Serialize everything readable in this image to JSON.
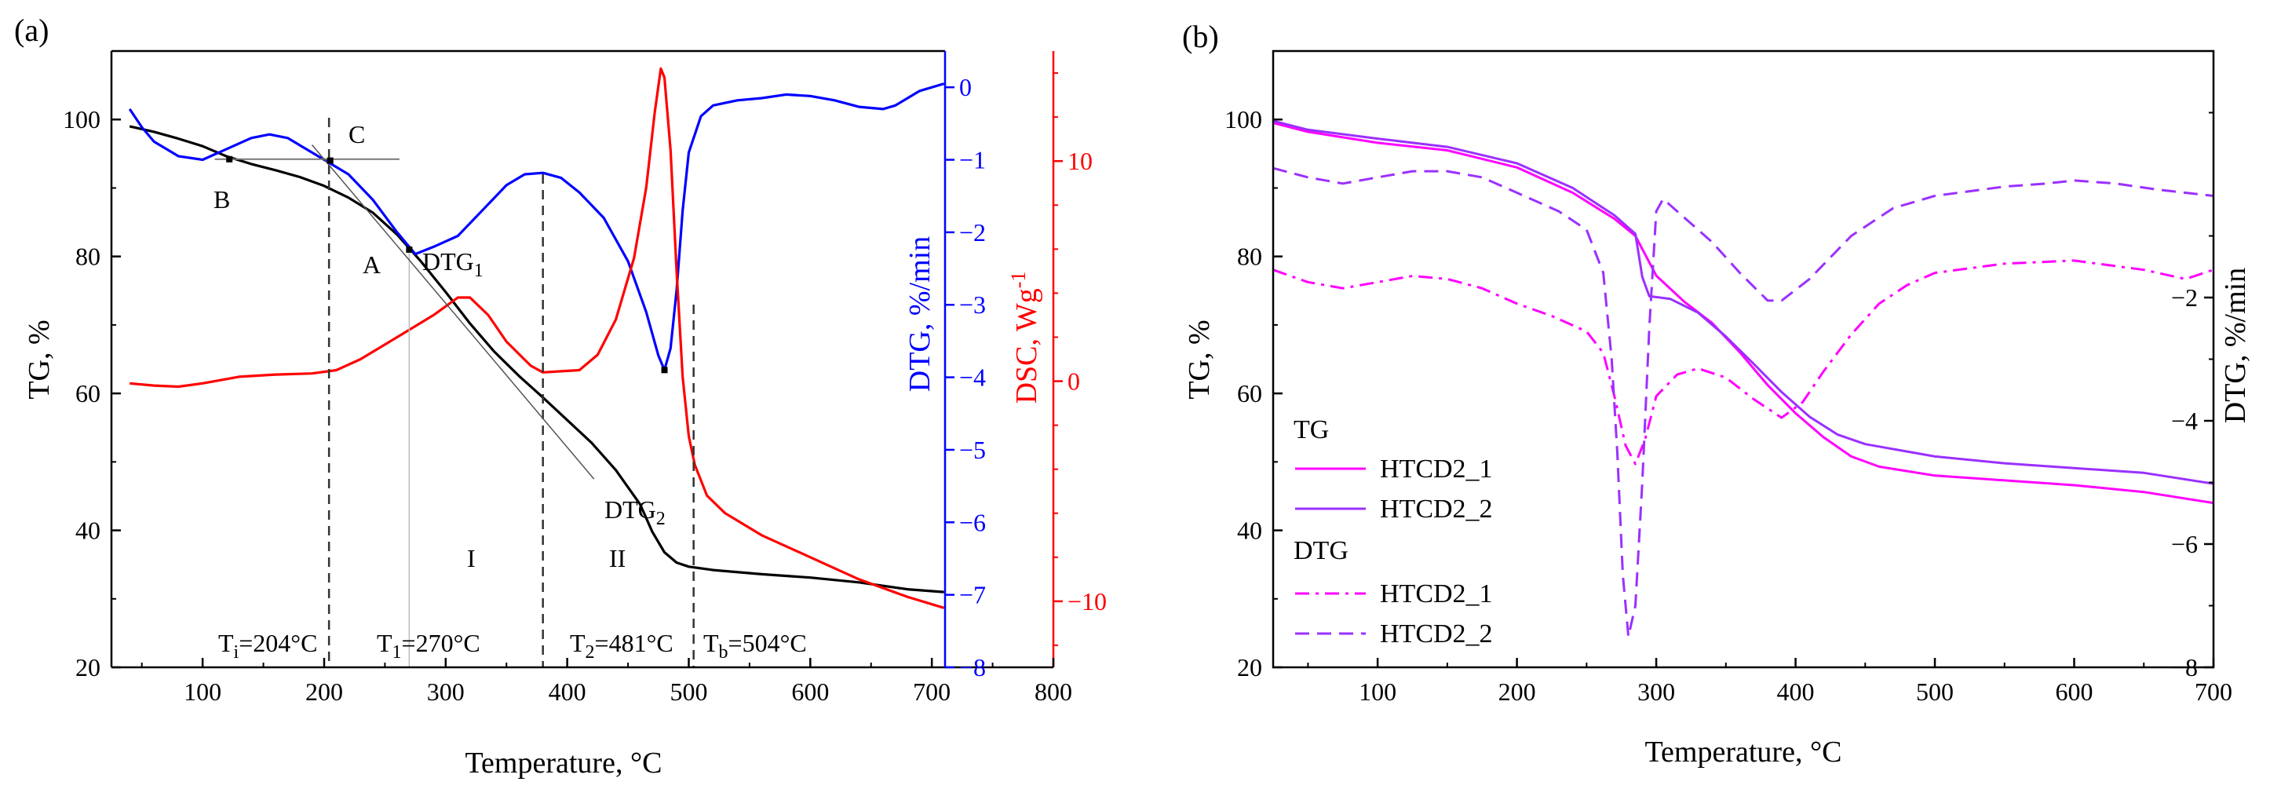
{
  "chart_data": [
    {
      "panel": "(a)",
      "type": "line",
      "xlabel": "Temperature, °C",
      "xlim": [
        25,
        800
      ],
      "x_ticks": [
        100,
        200,
        300,
        400,
        500,
        600,
        700,
        800
      ],
      "axes": {
        "tg": {
          "label": "TG, %",
          "ylim": [
            20,
            110
          ],
          "ticks": [
            20,
            40,
            60,
            80,
            100
          ],
          "color": "#000000"
        },
        "dtg": {
          "label": "DTG, %/min",
          "ylim": [
            -8,
            0.5
          ],
          "ticks": [
            -8,
            -7,
            -6,
            -5,
            -4,
            -3,
            -2,
            -1,
            0
          ],
          "color": "#0000ff"
        },
        "dsc": {
          "label": "DSC, Wg",
          "label_superscript": "-1",
          "ylim": [
            -13,
            15
          ],
          "ticks": [
            -10,
            0,
            10
          ],
          "tick_labels": [
            "−10",
            "0",
            "10"
          ],
          "color": "#ff0000"
        }
      },
      "series": [
        {
          "axis": "tg",
          "color": "#000000",
          "points": [
            [
              40,
              99
            ],
            [
              60,
              98.2
            ],
            [
              80,
              97.2
            ],
            [
              100,
              96.1
            ],
            [
              120,
              94.6
            ],
            [
              140,
              93.5
            ],
            [
              160,
              92.6
            ],
            [
              180,
              91.6
            ],
            [
              200,
              90.3
            ],
            [
              220,
              88.6
            ],
            [
              240,
              86.4
            ],
            [
              260,
              83.2
            ],
            [
              270,
              81.2
            ],
            [
              280,
              79.2
            ],
            [
              300,
              74.8
            ],
            [
              320,
              70.2
            ],
            [
              340,
              66.1
            ],
            [
              360,
              62.6
            ],
            [
              380,
              59.4
            ],
            [
              400,
              56.1
            ],
            [
              420,
              52.8
            ],
            [
              440,
              48.8
            ],
            [
              460,
              43.8
            ],
            [
              470,
              39.8
            ],
            [
              480,
              36.8
            ],
            [
              490,
              35.3
            ],
            [
              500,
              34.7
            ],
            [
              520,
              34.2
            ],
            [
              560,
              33.6
            ],
            [
              600,
              33.1
            ],
            [
              640,
              32.4
            ],
            [
              680,
              31.4
            ],
            [
              710,
              31
            ]
          ]
        },
        {
          "axis": "dtg",
          "color": "#0000ff",
          "points": [
            [
              40,
              -0.3
            ],
            [
              50,
              -0.55
            ],
            [
              60,
              -0.75
            ],
            [
              80,
              -0.95
            ],
            [
              100,
              -1.0
            ],
            [
              120,
              -0.85
            ],
            [
              140,
              -0.7
            ],
            [
              155,
              -0.65
            ],
            [
              170,
              -0.7
            ],
            [
              190,
              -0.9
            ],
            [
              205,
              -1.05
            ],
            [
              220,
              -1.2
            ],
            [
              240,
              -1.55
            ],
            [
              260,
              -2.0
            ],
            [
              275,
              -2.3
            ],
            [
              290,
              -2.2
            ],
            [
              310,
              -2.05
            ],
            [
              330,
              -1.7
            ],
            [
              350,
              -1.35
            ],
            [
              365,
              -1.2
            ],
            [
              380,
              -1.18
            ],
            [
              395,
              -1.25
            ],
            [
              410,
              -1.45
            ],
            [
              430,
              -1.8
            ],
            [
              450,
              -2.4
            ],
            [
              465,
              -3.1
            ],
            [
              475,
              -3.7
            ],
            [
              480,
              -3.9
            ],
            [
              485,
              -3.6
            ],
            [
              490,
              -2.8
            ],
            [
              495,
              -1.7
            ],
            [
              500,
              -0.9
            ],
            [
              510,
              -0.4
            ],
            [
              520,
              -0.25
            ],
            [
              540,
              -0.18
            ],
            [
              560,
              -0.15
            ],
            [
              580,
              -0.1
            ],
            [
              600,
              -0.12
            ],
            [
              620,
              -0.18
            ],
            [
              640,
              -0.27
            ],
            [
              660,
              -0.3
            ],
            [
              670,
              -0.25
            ],
            [
              690,
              -0.05
            ],
            [
              710,
              0.05
            ]
          ]
        },
        {
          "axis": "dsc",
          "color": "#ff0000",
          "points": [
            [
              40,
              -0.1
            ],
            [
              60,
              -0.2
            ],
            [
              80,
              -0.25
            ],
            [
              100,
              -0.1
            ],
            [
              130,
              0.2
            ],
            [
              160,
              0.3
            ],
            [
              190,
              0.35
            ],
            [
              210,
              0.5
            ],
            [
              230,
              1.0
            ],
            [
              260,
              2.0
            ],
            [
              290,
              3.0
            ],
            [
              310,
              3.8
            ],
            [
              320,
              3.8
            ],
            [
              335,
              3.0
            ],
            [
              350,
              1.8
            ],
            [
              370,
              0.7
            ],
            [
              380,
              0.4
            ],
            [
              395,
              0.45
            ],
            [
              410,
              0.5
            ],
            [
              425,
              1.2
            ],
            [
              440,
              2.8
            ],
            [
              455,
              5.6
            ],
            [
              465,
              8.8
            ],
            [
              472,
              12.2
            ],
            [
              477,
              14.2
            ],
            [
              480,
              13.8
            ],
            [
              485,
              10.5
            ],
            [
              490,
              5.0
            ],
            [
              495,
              0.2
            ],
            [
              500,
              -2.5
            ],
            [
              505,
              -3.8
            ],
            [
              515,
              -5.2
            ],
            [
              530,
              -6.0
            ],
            [
              560,
              -7.0
            ],
            [
              600,
              -8.0
            ],
            [
              640,
              -9.0
            ],
            [
              680,
              -9.8
            ],
            [
              710,
              -10.3
            ]
          ]
        }
      ],
      "annotations": [
        "B",
        "C",
        "A",
        "I",
        "II"
      ],
      "subscript_labels": [
        {
          "base": "DTG",
          "sub": "1",
          "suffix": ""
        },
        {
          "base": "DTG",
          "sub": "2",
          "suffix": ""
        },
        {
          "base": "T",
          "sub": "i",
          "suffix": "=204°C"
        },
        {
          "base": "T",
          "sub": "1",
          "suffix": "=270°C"
        },
        {
          "base": "T",
          "sub": "2",
          "suffix": "=481°C"
        },
        {
          "base": "T",
          "sub": "b",
          "suffix": "=504°C"
        }
      ],
      "vlines": [
        204,
        270,
        380,
        504
      ]
    },
    {
      "panel": "(b)",
      "type": "line",
      "xlabel": "Temperature, °C",
      "xlim": [
        25,
        700
      ],
      "x_ticks": [
        100,
        200,
        300,
        400,
        500,
        600,
        700
      ],
      "axes": {
        "tg": {
          "label": "TG, %",
          "ylim": [
            20,
            110
          ],
          "ticks": [
            20,
            40,
            60,
            80,
            100
          ]
        },
        "dtg": {
          "label": "DTG, %/min",
          "ylim": [
            -8,
            2
          ],
          "ticks": [
            -8,
            -6,
            -4,
            -2
          ],
          "tick_labels": [
            "−8",
            "−6",
            "−4",
            "−2"
          ]
        }
      },
      "legend": {
        "tg_heading": "TG",
        "dtg_heading": "DTG",
        "placement": "bottom-left"
      },
      "series": [
        {
          "name": "HTCD2_1",
          "group": "tg",
          "axis": "tg",
          "color": "#ff00ff",
          "dash": "solid",
          "points": [
            [
              25,
              99.5
            ],
            [
              50,
              98.2
            ],
            [
              100,
              96.6
            ],
            [
              150,
              95.5
            ],
            [
              200,
              93.0
            ],
            [
              240,
              89.3
            ],
            [
              270,
              85.5
            ],
            [
              285,
              83
            ],
            [
              300,
              77.2
            ],
            [
              320,
              73.4
            ],
            [
              340,
              70.3
            ],
            [
              360,
              66.0
            ],
            [
              380,
              61.2
            ],
            [
              400,
              57.1
            ],
            [
              420,
              53.6
            ],
            [
              440,
              50.8
            ],
            [
              460,
              49.3
            ],
            [
              500,
              48.0
            ],
            [
              550,
              47.3
            ],
            [
              600,
              46.6
            ],
            [
              650,
              45.6
            ],
            [
              700,
              44
            ]
          ]
        },
        {
          "name": "HTCD2_2",
          "group": "tg",
          "axis": "tg",
          "color": "#9b30ff",
          "dash": "solid",
          "points": [
            [
              25,
              99.8
            ],
            [
              50,
              98.5
            ],
            [
              100,
              97.2
            ],
            [
              150,
              96.0
            ],
            [
              200,
              93.6
            ],
            [
              240,
              90.0
            ],
            [
              270,
              86.0
            ],
            [
              285,
              83.3
            ],
            [
              290,
              77.0
            ],
            [
              295,
              74.2
            ],
            [
              310,
              73.8
            ],
            [
              330,
              71.8
            ],
            [
              350,
              68.3
            ],
            [
              370,
              64.3
            ],
            [
              390,
              60.2
            ],
            [
              410,
              56.6
            ],
            [
              430,
              54.0
            ],
            [
              450,
              52.6
            ],
            [
              500,
              50.8
            ],
            [
              550,
              49.8
            ],
            [
              600,
              49.1
            ],
            [
              650,
              48.4
            ],
            [
              700,
              46.8
            ]
          ]
        },
        {
          "name": "HTCD2_1",
          "group": "dtg",
          "axis": "dtg",
          "color": "#ff00ff",
          "dash": "dashdot",
          "points": [
            [
              25,
              -1.55
            ],
            [
              50,
              -1.75
            ],
            [
              75,
              -1.85
            ],
            [
              100,
              -1.75
            ],
            [
              125,
              -1.65
            ],
            [
              150,
              -1.7
            ],
            [
              175,
              -1.85
            ],
            [
              200,
              -2.1
            ],
            [
              225,
              -2.3
            ],
            [
              250,
              -2.55
            ],
            [
              262,
              -2.9
            ],
            [
              270,
              -3.6
            ],
            [
              278,
              -4.4
            ],
            [
              285,
              -4.7
            ],
            [
              292,
              -4.3
            ],
            [
              300,
              -3.6
            ],
            [
              315,
              -3.25
            ],
            [
              330,
              -3.15
            ],
            [
              350,
              -3.3
            ],
            [
              370,
              -3.65
            ],
            [
              390,
              -3.95
            ],
            [
              405,
              -3.7
            ],
            [
              420,
              -3.2
            ],
            [
              440,
              -2.6
            ],
            [
              460,
              -2.1
            ],
            [
              480,
              -1.8
            ],
            [
              500,
              -1.6
            ],
            [
              550,
              -1.45
            ],
            [
              600,
              -1.4
            ],
            [
              650,
              -1.55
            ],
            [
              680,
              -1.7
            ],
            [
              700,
              -1.55
            ]
          ]
        },
        {
          "name": "HTCD2_2",
          "group": "dtg",
          "axis": "dtg",
          "color": "#9b30ff",
          "dash": "dash",
          "points": [
            [
              25,
              0.1
            ],
            [
              50,
              -0.05
            ],
            [
              75,
              -0.15
            ],
            [
              100,
              -0.05
            ],
            [
              125,
              0.05
            ],
            [
              150,
              0.05
            ],
            [
              175,
              -0.05
            ],
            [
              200,
              -0.3
            ],
            [
              230,
              -0.6
            ],
            [
              250,
              -0.9
            ],
            [
              262,
              -1.6
            ],
            [
              268,
              -3.0
            ],
            [
              272,
              -4.5
            ],
            [
              276,
              -6.5
            ],
            [
              280,
              -7.5
            ],
            [
              285,
              -7.0
            ],
            [
              290,
              -5.0
            ],
            [
              295,
              -2.5
            ],
            [
              300,
              -0.6
            ],
            [
              305,
              -0.4
            ],
            [
              320,
              -0.7
            ],
            [
              340,
              -1.1
            ],
            [
              360,
              -1.6
            ],
            [
              380,
              -2.05
            ],
            [
              390,
              -2.05
            ],
            [
              410,
              -1.7
            ],
            [
              440,
              -1.0
            ],
            [
              470,
              -0.55
            ],
            [
              500,
              -0.35
            ],
            [
              550,
              -0.2
            ],
            [
              580,
              -0.15
            ],
            [
              600,
              -0.1
            ],
            [
              630,
              -0.15
            ],
            [
              660,
              -0.25
            ],
            [
              700,
              -0.35
            ]
          ]
        }
      ]
    }
  ]
}
